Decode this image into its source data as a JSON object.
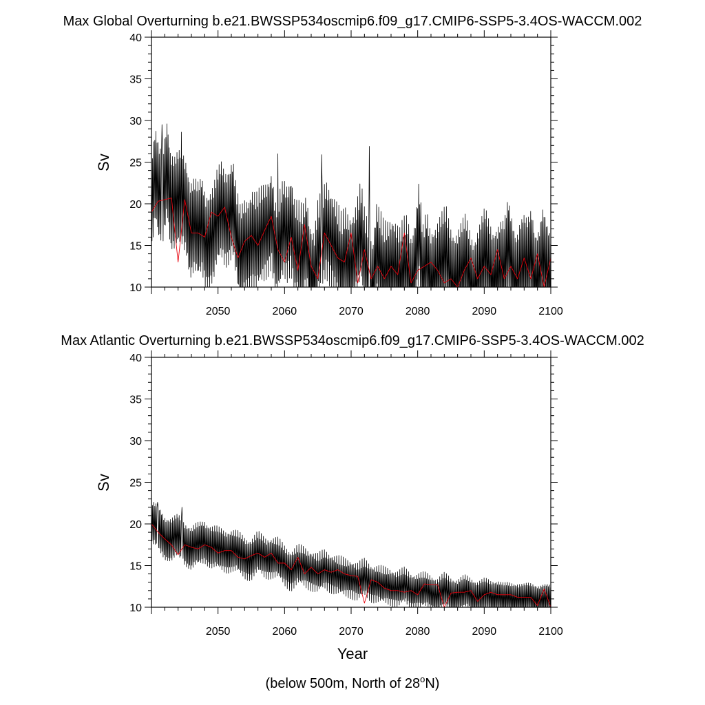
{
  "figure": {
    "xlabel": "Year",
    "note_prefix": "(below 500m, North of 28",
    "note_degree": "o",
    "note_suffix": "N)"
  },
  "chart_data": [
    {
      "type": "line",
      "title": "Max Global Overturning b.e21.BWSSP534oscmip6.f09_g17.CMIP6-SSP5-3.4OS-WACCM.002",
      "ylabel": "Sv",
      "xlim": [
        2040,
        2100
      ],
      "ylim": [
        10,
        40
      ],
      "x_ticks": [
        2050,
        2060,
        2070,
        2080,
        2090,
        2100
      ],
      "y_ticks": [
        10,
        15,
        20,
        25,
        30,
        35,
        40
      ],
      "grid": false,
      "series": [
        {
          "color": "#000000",
          "x_start": 2040.0,
          "x_step": 0.0833,
          "anchors": [
            19.4,
            23.0,
            21.0,
            21.5,
            25.0,
            20.0,
            19.5,
            20.5,
            21.0,
            20.0,
            16.8,
            17.0,
            16.5,
            17.5,
            16.0,
            16.0,
            16.2,
            18.0,
            19.2,
            18.5,
            19.0,
            19.6,
            15.5,
            13.5,
            15.0,
            15.5,
            16.0,
            15.0,
            15.7,
            16.5,
            17.5,
            18.5,
            14.0,
            15.0,
            17.0,
            16.8,
            18.0,
            14.5,
            14.0,
            13.5,
            15.5,
            12.0,
            11.0,
            14.5,
            15.0,
            17.0,
            16.5,
            15.5,
            14.0,
            12.5,
            13.5,
            13.0,
            13.5,
            14.5,
            16.5,
            13.0,
            12.0,
            10.0,
            14.5,
            13.0,
            11.5,
            12.0,
            13.0,
            12.5,
            11.0,
            12.0,
            12.5,
            10.5,
            13.0,
            17.0,
            11.0,
            13.0,
            11.0,
            12.0,
            12.5,
            13.0,
            13.5,
            11.5,
            11.0,
            11.5,
            12.0,
            12.5,
            11.0,
            10.0,
            11.5,
            12.5,
            13.5,
            12.0,
            11.0,
            12.0,
            12.5,
            12.0,
            14.5,
            12.5,
            11.0,
            12.5,
            13.0,
            12.0,
            13.5,
            11.0,
            12.0,
            14.0,
            11.5,
            10.0
          ],
          "amplitude_start": 6.5,
          "amplitude_end": 6.5,
          "peaks": [
            {
              "x": 2041.6,
              "y": 29.5
            },
            {
              "x": 2044.5,
              "y": 28.6
            },
            {
              "x": 2072.7,
              "y": 26.9
            },
            {
              "x": 2065.6,
              "y": 25.9
            },
            {
              "x": 2059.0,
              "y": 26.0
            }
          ]
        },
        {
          "color": "#e8000b",
          "x": [
            2040,
            2041,
            2042,
            2043,
            2044,
            2045,
            2046,
            2047,
            2048,
            2049,
            2050,
            2051,
            2052,
            2053,
            2054,
            2055,
            2056,
            2057,
            2058,
            2059,
            2060,
            2061,
            2062,
            2063,
            2064,
            2065,
            2066,
            2067,
            2068,
            2069,
            2070,
            2071,
            2072,
            2073,
            2074,
            2075,
            2076,
            2077,
            2078,
            2079,
            2080,
            2081,
            2082,
            2083,
            2084,
            2085,
            2086,
            2087,
            2088,
            2089,
            2090,
            2091,
            2092,
            2093,
            2094,
            2095,
            2096,
            2097,
            2098,
            2099,
            2100
          ],
          "values": [
            19.0,
            20.3,
            20.5,
            20.7,
            13.0,
            20.5,
            16.5,
            16.5,
            16.0,
            19.0,
            18.5,
            19.6,
            16.0,
            13.5,
            15.5,
            16.2,
            15.0,
            16.8,
            18.5,
            14.5,
            13.0,
            16.0,
            12.0,
            17.5,
            12.5,
            11.0,
            16.5,
            15.0,
            13.5,
            13.0,
            16.5,
            10.5,
            14.5,
            11.0,
            12.5,
            11.0,
            12.5,
            11.5,
            16.5,
            10.5,
            12.0,
            12.5,
            13.0,
            12.0,
            10.5,
            11.0,
            10.0,
            12.0,
            13.5,
            11.0,
            12.5,
            11.5,
            14.5,
            11.0,
            12.5,
            11.0,
            13.5,
            11.0,
            14.0,
            10.0,
            13.5
          ]
        }
      ]
    },
    {
      "type": "line",
      "title": "Max Atlantic Overturning b.e21.BWSSP534oscmip6.f09_g17.CMIP6-SSP5-3.4OS-WACCM.002",
      "ylabel": "Sv",
      "xlim": [
        2040,
        2100
      ],
      "ylim": [
        10,
        40
      ],
      "x_ticks": [
        2050,
        2060,
        2070,
        2080,
        2090,
        2100
      ],
      "y_ticks": [
        10,
        15,
        20,
        25,
        30,
        35,
        40
      ],
      "grid": false,
      "series": [
        {
          "color": "#000000",
          "x_start": 2040.0,
          "x_step": 0.0833,
          "anchors": [
            20.0,
            19.5,
            18.5,
            18.0,
            18.5,
            17.8,
            17.0,
            17.5,
            18.0,
            17.2,
            17.0,
            16.8,
            16.8,
            16.5,
            16.0,
            15.8,
            16.5,
            16.0,
            16.0,
            15.8,
            15.0,
            14.5,
            15.0,
            14.8,
            14.5,
            14.0,
            14.5,
            14.2,
            13.8,
            13.5,
            13.5,
            13.0,
            13.5,
            13.0,
            12.8,
            12.5,
            12.5,
            12.2,
            12.5,
            12.0,
            12.0,
            12.0,
            11.8,
            11.5,
            12.0,
            11.5,
            11.5,
            11.8,
            11.5,
            11.3,
            11.5,
            11.2,
            11.5,
            11.0,
            11.0,
            11.2,
            11.0,
            11.0,
            11.0,
            11.0,
            10.8
          ],
          "amplitude_start": 3.0,
          "amplitude_end": 2.0,
          "peaks": [
            {
              "x": 2040.9,
              "y": 22.6
            },
            {
              "x": 2044.6,
              "y": 22.0
            }
          ]
        },
        {
          "color": "#e8000b",
          "x": [
            2040,
            2041,
            2042,
            2043,
            2044,
            2045,
            2046,
            2047,
            2048,
            2049,
            2050,
            2051,
            2052,
            2053,
            2054,
            2055,
            2056,
            2057,
            2058,
            2059,
            2060,
            2061,
            2062,
            2063,
            2064,
            2065,
            2066,
            2067,
            2068,
            2069,
            2070,
            2071,
            2072,
            2073,
            2074,
            2075,
            2076,
            2077,
            2078,
            2079,
            2080,
            2081,
            2082,
            2083,
            2084,
            2085,
            2086,
            2087,
            2088,
            2089,
            2090,
            2091,
            2092,
            2093,
            2094,
            2095,
            2096,
            2097,
            2098,
            2099,
            2100
          ],
          "values": [
            20.0,
            19.0,
            18.2,
            17.5,
            16.3,
            17.5,
            17.2,
            17.0,
            17.5,
            17.2,
            16.5,
            16.8,
            16.8,
            16.0,
            15.8,
            16.2,
            16.5,
            16.0,
            16.5,
            15.3,
            15.3,
            14.5,
            16.0,
            14.0,
            14.8,
            14.0,
            14.5,
            14.2,
            14.5,
            14.0,
            13.8,
            13.7,
            10.5,
            13.3,
            13.0,
            12.3,
            12.0,
            12.0,
            11.8,
            12.0,
            11.5,
            12.8,
            12.7,
            12.7,
            10.0,
            11.7,
            11.8,
            11.8,
            12.0,
            10.7,
            11.5,
            11.8,
            11.5,
            11.5,
            11.5,
            11.2,
            11.2,
            11.2,
            10.2,
            12.2,
            10.0
          ]
        }
      ]
    }
  ]
}
